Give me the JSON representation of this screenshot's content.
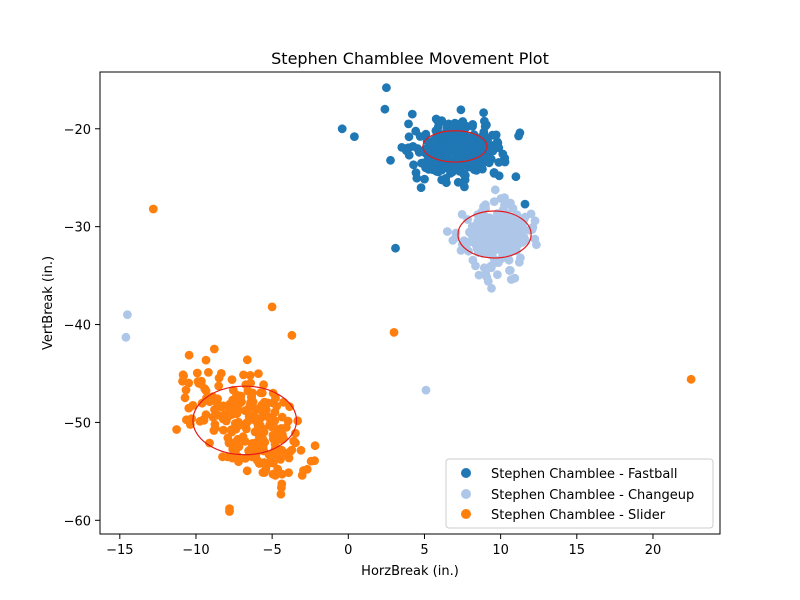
{
  "chart_data": {
    "type": "scatter",
    "title": "Stephen Chamblee Movement Plot",
    "xlabel": "HorzBreak (in.)",
    "ylabel": "VertBreak (in.)",
    "xlim": [
      -16.3,
      24.4
    ],
    "ylim": [
      -61.4,
      -14.2
    ],
    "xticks": [
      -15,
      -10,
      -5,
      0,
      5,
      10,
      15,
      20
    ],
    "yticks": [
      -60,
      -50,
      -40,
      -30,
      -20
    ],
    "grid": false,
    "legend_position": "lower right",
    "series": [
      {
        "name": "Stephen Chamblee - Fastball",
        "color": "#1f77b4",
        "outliers": [
          [
            2.5,
            -15.8
          ],
          [
            2.4,
            -18.0
          ],
          [
            -0.4,
            -20.0
          ],
          [
            0.4,
            -20.8
          ],
          [
            3.1,
            -32.2
          ],
          [
            4.2,
            -18.5
          ],
          [
            11.6,
            -27.7
          ],
          [
            11.0,
            -24.9
          ]
        ],
        "cluster": {
          "center": [
            7.2,
            -22.1
          ],
          "spread": [
            1.4,
            1.5
          ],
          "rot": -0.35,
          "n": 300,
          "seed": 11
        },
        "ellipse": {
          "center": [
            7.0,
            -21.8
          ],
          "width": 4.2,
          "height": 3.2
        }
      },
      {
        "name": "Stephen Chamblee - Changeup",
        "color": "#aec7e8",
        "outliers": [
          [
            -14.5,
            -39.0
          ],
          [
            -14.6,
            -41.3
          ],
          [
            5.1,
            -46.7
          ],
          [
            6.5,
            -30.5
          ],
          [
            9.4,
            -36.3
          ],
          [
            10.7,
            -35.4
          ]
        ],
        "cluster": {
          "center": [
            9.7,
            -31.0
          ],
          "spread": [
            1.05,
            1.55
          ],
          "rot": 0.0,
          "n": 260,
          "seed": 23
        },
        "ellipse": {
          "center": [
            9.6,
            -30.8
          ],
          "width": 4.8,
          "height": 4.8
        }
      },
      {
        "name": "Stephen Chamblee - Slider",
        "color": "#ff7f0e",
        "outliers": [
          [
            -12.8,
            -28.2
          ],
          [
            3.0,
            -40.8
          ],
          [
            22.5,
            -45.6
          ],
          [
            -5.0,
            -38.2
          ],
          [
            -3.7,
            -41.1
          ],
          [
            -7.8,
            -58.8
          ],
          [
            -7.8,
            -59.1
          ],
          [
            -8.8,
            -42.5
          ]
        ],
        "cluster": {
          "center": [
            -6.8,
            -50.0
          ],
          "spread": [
            1.4,
            3.2
          ],
          "rot": 0.45,
          "n": 240,
          "seed": 37
        },
        "ellipse": {
          "center": [
            -6.8,
            -49.8
          ],
          "width": 6.8,
          "height": 7.0
        }
      }
    ]
  }
}
